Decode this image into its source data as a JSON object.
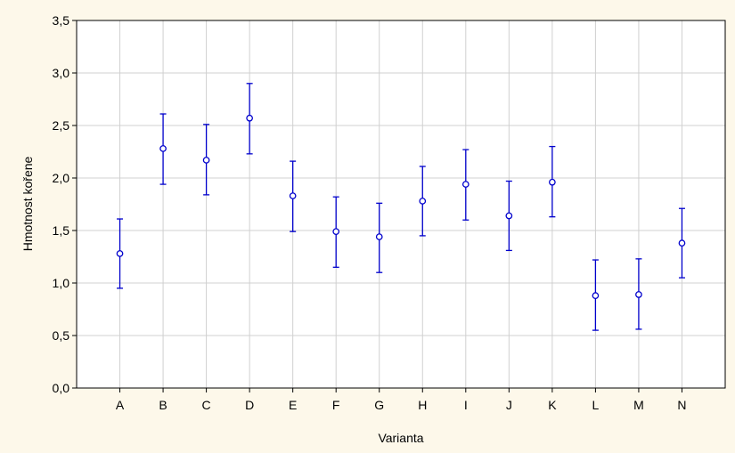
{
  "chart_data": {
    "type": "scatter",
    "subtype": "mean-with-error-bars",
    "title": "",
    "xlabel": "Varianta",
    "ylabel": "Hmotnost kořene",
    "categories": [
      "A",
      "B",
      "C",
      "D",
      "E",
      "F",
      "G",
      "H",
      "I",
      "J",
      "K",
      "L",
      "M",
      "N"
    ],
    "means": [
      1.28,
      2.28,
      2.17,
      2.57,
      1.83,
      1.49,
      1.44,
      1.78,
      1.94,
      1.64,
      1.96,
      0.88,
      0.89,
      1.38
    ],
    "lower": [
      0.95,
      1.94,
      1.84,
      2.23,
      1.49,
      1.15,
      1.1,
      1.45,
      1.6,
      1.31,
      1.63,
      0.55,
      0.56,
      1.05
    ],
    "upper": [
      1.61,
      2.61,
      2.51,
      2.9,
      2.16,
      1.82,
      1.76,
      2.11,
      2.27,
      1.97,
      2.3,
      1.22,
      1.23,
      1.71
    ],
    "ylim": [
      0,
      3.5
    ],
    "yticks": [
      0,
      0.5,
      1.0,
      1.5,
      2.0,
      2.5,
      3.0,
      3.5
    ],
    "ytick_labels": [
      "0,0",
      "0,5",
      "1,0",
      "1,5",
      "2,0",
      "2,5",
      "3,0",
      "3,5"
    ],
    "grid": true,
    "legend": "none",
    "colors": {
      "series": "#0000cc",
      "grid": "#d0d0d0",
      "axis": "#000000",
      "plot_background": "#ffffff",
      "page_background": "#fdf8ea"
    }
  }
}
